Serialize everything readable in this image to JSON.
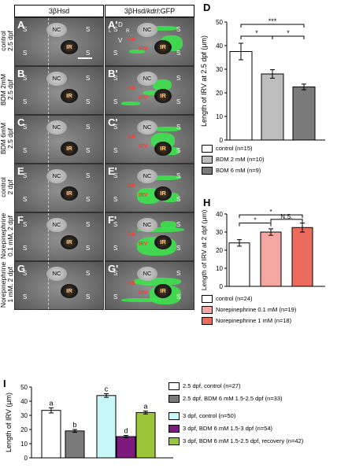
{
  "header": {
    "left": "3βHsd",
    "right_prefix": "3βHsd/",
    "right_italic": "kdrl",
    "right_suffix": ":GFP"
  },
  "rows": [
    {
      "label": "control\n2.5 dpf",
      "left": "A",
      "right": "A'"
    },
    {
      "label": "BDM 2mM\n2.5 dpf",
      "left": "B",
      "right": "B'"
    },
    {
      "label": "BDM 6mM\n2.5 dpf",
      "left": "C",
      "right": "C'"
    },
    {
      "label": "control\n2 dpf",
      "left": "E",
      "right": "E'"
    },
    {
      "label": "Norepinephrine\n0.1 mM, 2 dpf",
      "left": "F",
      "right": "F'"
    },
    {
      "label": "Norepinephrine\n1 mM, 2 dpf",
      "left": "G",
      "right": "G'"
    }
  ],
  "image_labels": {
    "s": "S",
    "nc": "NC",
    "ir": "IR",
    "da": "DA",
    "irv": "IRV"
  },
  "axes_labels": {
    "d": "D",
    "v": "V",
    "l": "L",
    "r": "R"
  },
  "panel_letters": {
    "d": "D",
    "h": "H",
    "i": "I"
  },
  "colors": {
    "control": "#ffffff",
    "bdm2": "#bdbdbd",
    "bdm6": "#7a7a7a",
    "ne01": "#f4a6a2",
    "ne1": "#ec6b5f",
    "cyan": "#c8f7f7",
    "purple": "#7d1a7e",
    "lime": "#9cc53a"
  },
  "chart_data": [
    {
      "panel": "D",
      "type": "bar",
      "ylabel": "Length of IRV at 2.5 dpf (μm)",
      "ylim": [
        0,
        50
      ],
      "yticks": [
        0,
        10,
        20,
        30,
        40,
        50
      ],
      "values": [
        37.5,
        28,
        22.5
      ],
      "errors": [
        3.5,
        1.8,
        1.2
      ],
      "colors": [
        "#ffffff",
        "#bdbdbd",
        "#7a7a7a"
      ],
      "significance": [
        "*",
        "*",
        "***"
      ],
      "legend": [
        "control (n=15)",
        "BDM 2 mM (n=10)",
        "BDM 6 mM (n=9)"
      ]
    },
    {
      "panel": "H",
      "type": "bar",
      "ylabel": "Length of IRV at 2 dpf (μm)",
      "ylim": [
        0,
        40
      ],
      "yticks": [
        0,
        10,
        20,
        30,
        40
      ],
      "values": [
        24,
        30,
        32.5
      ],
      "errors": [
        1.8,
        1.8,
        2.5
      ],
      "colors": [
        "#ffffff",
        "#f4a6a2",
        "#ec6b5f"
      ],
      "significance": [
        "*",
        "N.S.",
        "*"
      ],
      "legend": [
        "control (n=24)",
        "Norepinephrine 0.1 mM (n=19)",
        "Norepinephrine 1 mM (n=18)"
      ]
    },
    {
      "panel": "I",
      "type": "bar",
      "ylabel": "Length of IRV (μm)",
      "ylim": [
        0,
        50
      ],
      "yticks": [
        0,
        10,
        20,
        30,
        40,
        50
      ],
      "values": [
        33.5,
        19,
        44,
        15,
        32
      ],
      "errors": [
        1.8,
        1.0,
        1.3,
        0.8,
        1.0
      ],
      "colors": [
        "#ffffff",
        "#7a7a7a",
        "#c8f7f7",
        "#7d1a7e",
        "#9cc53a"
      ],
      "letters": [
        "a",
        "b",
        "c",
        "d",
        "a"
      ],
      "legend": [
        "2.5 dpf, control (n=27)",
        "2.5 dpf, BDM 6 mM 1.5-2.5 dpf (n=33)",
        "3 dpf, control (n=50)",
        "3 dpf, BDM 6 mM 1.5-3 dpf (n=54)",
        "3 dpf, BDM 6 mM 1.5-2.5 dpf, recovery (n=42)"
      ]
    }
  ]
}
